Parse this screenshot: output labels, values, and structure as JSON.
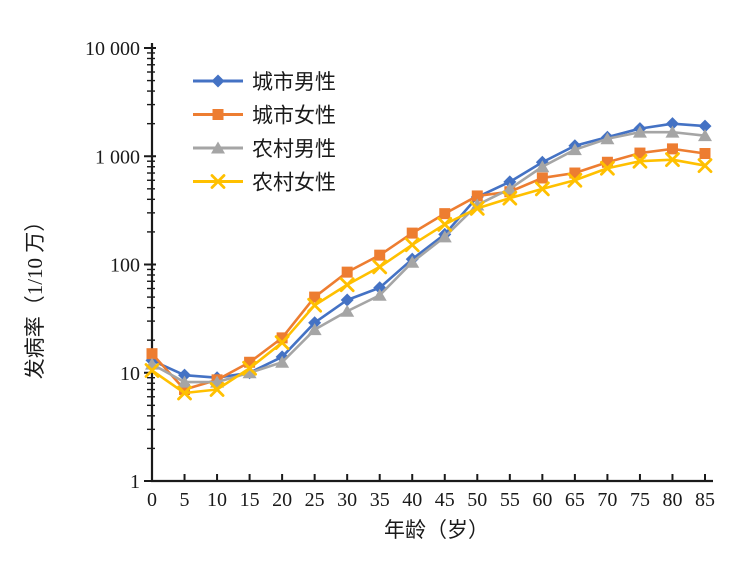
{
  "figure": {
    "background": "#ffffff",
    "axis_color": "#1a1a1a"
  },
  "chart_data": {
    "type": "line",
    "title": "",
    "xlabel": "年龄（岁）",
    "ylabel": "发病率（1/10 万）",
    "y_scale": "log",
    "ylim": [
      1,
      10000
    ],
    "y_tick_values": [
      1,
      10,
      100,
      1000,
      10000
    ],
    "y_tick_labels": [
      "1",
      "10",
      "100",
      "1 000",
      "10 000"
    ],
    "x_tick_values": [
      0,
      5,
      10,
      15,
      20,
      25,
      30,
      35,
      40,
      45,
      50,
      55,
      60,
      65,
      70,
      75,
      80,
      85
    ],
    "x": [
      0,
      5,
      10,
      15,
      20,
      25,
      30,
      35,
      40,
      45,
      50,
      55,
      60,
      65,
      70,
      75,
      80,
      85
    ],
    "grid": false,
    "legend_position": "top-left-inside",
    "series": [
      {
        "name": "城市男性",
        "color": "#4472C4",
        "marker": "diamond",
        "values": [
          13,
          9.5,
          9,
          10,
          14,
          29,
          47,
          61,
          112,
          190,
          420,
          580,
          880,
          1250,
          1500,
          1800,
          2000,
          1900
        ]
      },
      {
        "name": "城市女性",
        "color": "#ED7D31",
        "marker": "square",
        "values": [
          15,
          7,
          8.6,
          12.5,
          21,
          50,
          85,
          122,
          195,
          295,
          430,
          470,
          630,
          700,
          880,
          1070,
          1170,
          1060
        ]
      },
      {
        "name": "农村男性",
        "color": "#A5A5A5",
        "marker": "triangle",
        "values": [
          12,
          8.2,
          8.2,
          10,
          12.5,
          25,
          37,
          52,
          105,
          180,
          355,
          500,
          800,
          1150,
          1450,
          1670,
          1670,
          1550
        ]
      },
      {
        "name": "农村女性",
        "color": "#FFC000",
        "marker": "x",
        "values": [
          10.5,
          6.5,
          7,
          11,
          19,
          42,
          65,
          95,
          152,
          235,
          330,
          410,
          500,
          600,
          775,
          900,
          930,
          820
        ]
      }
    ]
  }
}
